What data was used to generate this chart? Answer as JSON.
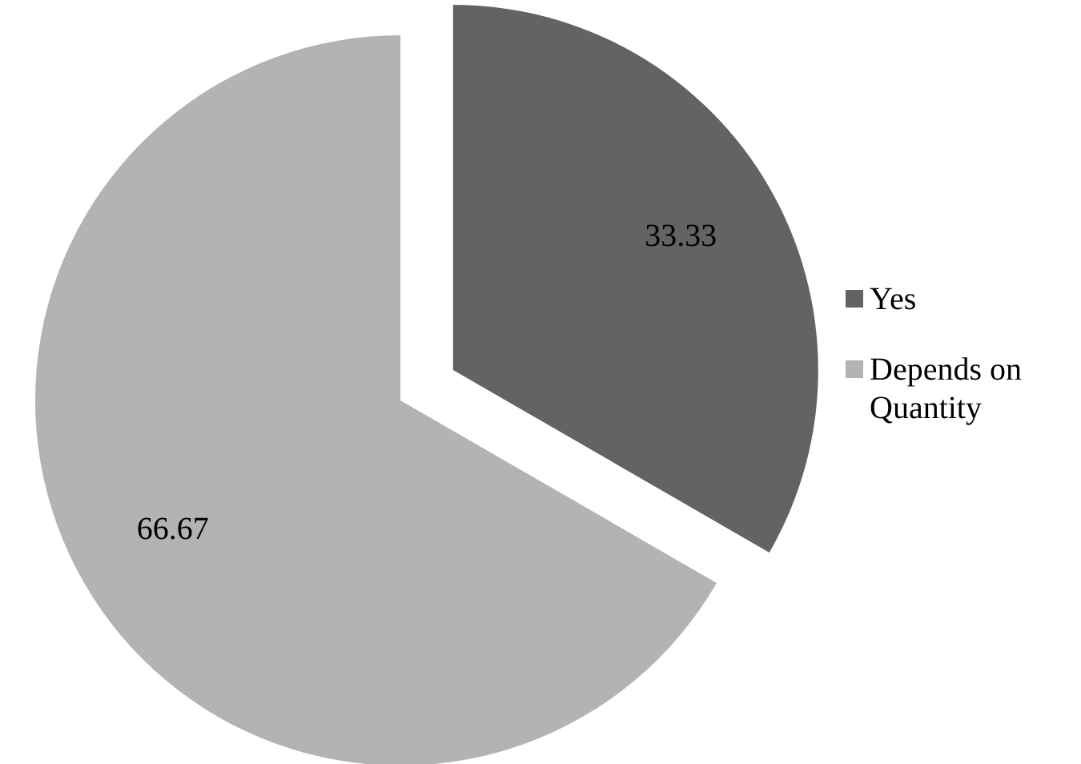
{
  "chart_data": {
    "type": "pie",
    "categories": [
      "Yes",
      "Depends on Quantity"
    ],
    "values": [
      33.33,
      66.67
    ],
    "colors": [
      "#636363",
      "#b3b3b3"
    ],
    "data_labels": true,
    "legend": "right"
  }
}
